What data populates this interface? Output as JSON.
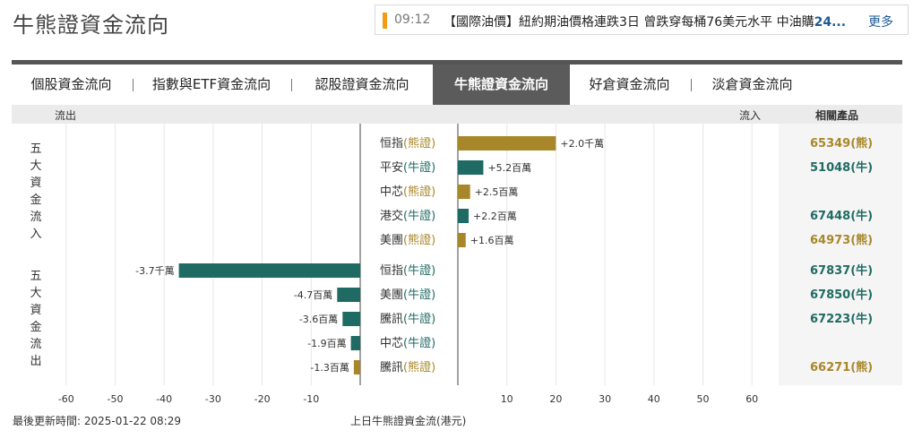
{
  "page_title": "牛熊證資金流向",
  "ticker": {
    "time": "09:12",
    "text": "【國際油價】紐約期油價格連跌3日 曾跌穿每桶76美元水平 中油購",
    "highlight": "24...",
    "more": "更多"
  },
  "tabs": [
    {
      "label": "個股資金流向",
      "active": false
    },
    {
      "label": "指數與ETF資金流向",
      "active": false
    },
    {
      "label": "認股證資金流向",
      "active": false
    },
    {
      "label": "牛熊證資金流向",
      "active": true
    },
    {
      "label": "好倉資金流向",
      "active": false
    },
    {
      "label": "淡倉資金流向",
      "active": false
    }
  ],
  "header": {
    "outflow": "流出",
    "inflow": "流入",
    "related": "相關產品"
  },
  "group_labels": {
    "inflow": "五大資金流入",
    "outflow": "五大資金流出"
  },
  "footer": {
    "updated": "最後更新時間: 2025-01-22 08:29",
    "caption": "上日牛熊證資金流(港元)"
  },
  "colors": {
    "bull": "#1f6b64",
    "bear": "#a8872a"
  },
  "chart_data": {
    "type": "bar",
    "orientation": "horizontal",
    "xlabel": "上日牛熊證資金流(港元)",
    "xlim": [
      -60,
      60
    ],
    "ticks": [
      -60,
      -50,
      -40,
      -30,
      -20,
      -10,
      10,
      20,
      30,
      40,
      50,
      60
    ],
    "inflow": [
      {
        "name": "恒指",
        "type": "熊證",
        "value": 20,
        "label": "+2.0千萬",
        "related": "65349(熊)"
      },
      {
        "name": "平安",
        "type": "牛證",
        "value": 5.2,
        "label": "+5.2百萬",
        "related": "51048(牛)"
      },
      {
        "name": "中芯",
        "type": "熊證",
        "value": 2.5,
        "label": "+2.5百萬",
        "related": ""
      },
      {
        "name": "港交",
        "type": "牛證",
        "value": 2.2,
        "label": "+2.2百萬",
        "related": "67448(牛)"
      },
      {
        "name": "美團",
        "type": "熊證",
        "value": 1.6,
        "label": "+1.6百萬",
        "related": "64973(熊)"
      }
    ],
    "outflow": [
      {
        "name": "恒指",
        "type": "牛證",
        "value": -37,
        "label": "-3.7千萬",
        "related": "67837(牛)"
      },
      {
        "name": "美團",
        "type": "牛證",
        "value": -4.7,
        "label": "-4.7百萬",
        "related": "67850(牛)"
      },
      {
        "name": "騰訊",
        "type": "牛證",
        "value": -3.6,
        "label": "-3.6百萬",
        "related": "67223(牛)"
      },
      {
        "name": "中芯",
        "type": "牛證",
        "value": -1.9,
        "label": "-1.9百萬",
        "related": ""
      },
      {
        "name": "騰訊",
        "type": "熊證",
        "value": -1.3,
        "label": "-1.3百萬",
        "related": "66271(熊)"
      }
    ]
  }
}
